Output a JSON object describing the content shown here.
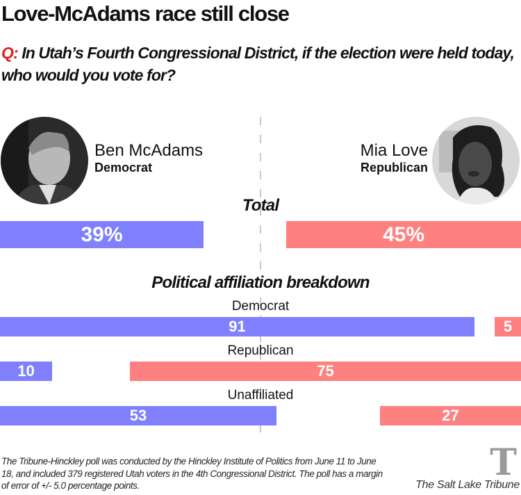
{
  "header": {
    "title": "Love-McAdams race still close",
    "question_prefix": "Q:",
    "question_text": " In Utah’s Fourth Congressional District, if the election were held today, who would you vote for?"
  },
  "candidates": {
    "left": {
      "name": "Ben McAdams",
      "party": "Democrat",
      "photo": "ben-mcadams-portrait"
    },
    "right": {
      "name": "Mia Love",
      "party": "Republican",
      "photo": "mia-love-portrait"
    }
  },
  "colors": {
    "democrat": "#8080ff",
    "republican": "#ff8080",
    "question_accent": "#e31d1a",
    "divider": "#c8c8c8"
  },
  "chart_data": {
    "type": "bar",
    "orientation": "horizontal-diverging",
    "title": "Love-McAdams race still close",
    "unit": "percent",
    "scale_max": 100,
    "series": [
      {
        "name": "Ben McAdams (Democrat)",
        "anchor": "left",
        "color": "#8080ff"
      },
      {
        "name": "Mia Love (Republican)",
        "anchor": "right",
        "color": "#ff8080"
      }
    ],
    "total": {
      "label": "Total",
      "values": [
        39,
        45
      ],
      "display": [
        "39%",
        "45%"
      ]
    },
    "breakdown": {
      "label": "Political affiliation breakdown",
      "categories": [
        "Democrat",
        "Republican",
        "Unaffiliated"
      ],
      "values": [
        [
          91,
          5
        ],
        [
          10,
          75
        ],
        [
          53,
          27
        ]
      ],
      "display": [
        [
          "91",
          "5"
        ],
        [
          "10",
          "75"
        ],
        [
          "53",
          "27"
        ]
      ]
    }
  },
  "footer": {
    "note": "The Tribune-Hinckley poll was conducted by the Hinckley Institute of Politics from June 11 to June 18, and included 379 registered Utah voters in the 4th Congressional District. The poll has a margin of error of +/- 5.0 percentage points.",
    "logo_glyph": "T",
    "logo_text": "The Salt Lake Tribune"
  }
}
